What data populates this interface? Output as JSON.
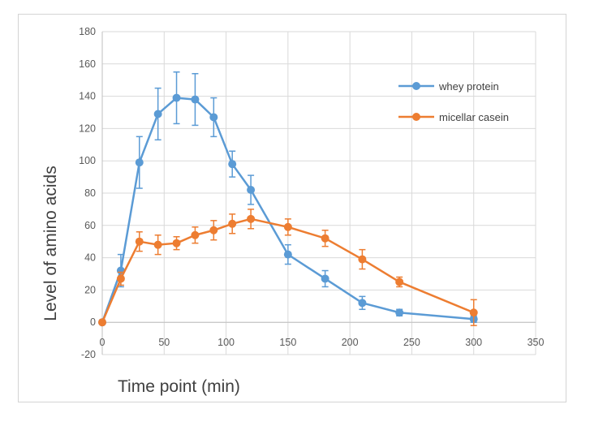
{
  "chart_data": {
    "type": "line",
    "title": "",
    "xlabel": "Time point (min)",
    "ylabel": "Level of amino acids",
    "xlim": [
      0,
      350
    ],
    "ylim": [
      -20,
      180
    ],
    "xticks": [
      0,
      50,
      100,
      150,
      200,
      250,
      300,
      350
    ],
    "yticks": [
      -20,
      0,
      20,
      40,
      60,
      80,
      100,
      120,
      140,
      160,
      180
    ],
    "ytick_labels": [
      "-20",
      "0",
      "20",
      "40",
      "60",
      "80",
      "100",
      "120",
      "140",
      "160",
      "180"
    ],
    "grid": true,
    "legend_position": "top-right",
    "series": [
      {
        "name": "whey protein",
        "color": "#5b9bd5",
        "x": [
          0,
          15,
          30,
          45,
          60,
          75,
          90,
          105,
          120,
          150,
          180,
          210,
          240,
          300
        ],
        "y": [
          0,
          32,
          99,
          129,
          139,
          138,
          127,
          98,
          82,
          42,
          27,
          12,
          6,
          2
        ],
        "error": [
          0,
          10,
          16,
          16,
          16,
          16,
          12,
          8,
          9,
          6,
          5,
          4,
          2,
          2
        ]
      },
      {
        "name": "micellar casein",
        "color": "#ed7d31",
        "x": [
          0,
          15,
          30,
          45,
          60,
          75,
          90,
          105,
          120,
          150,
          180,
          210,
          240,
          300
        ],
        "y": [
          0,
          27,
          50,
          48,
          49,
          54,
          57,
          61,
          64,
          59,
          52,
          39,
          25,
          6
        ],
        "error": [
          0,
          4,
          6,
          6,
          4,
          5,
          6,
          6,
          6,
          5,
          5,
          6,
          3,
          8
        ]
      }
    ]
  }
}
